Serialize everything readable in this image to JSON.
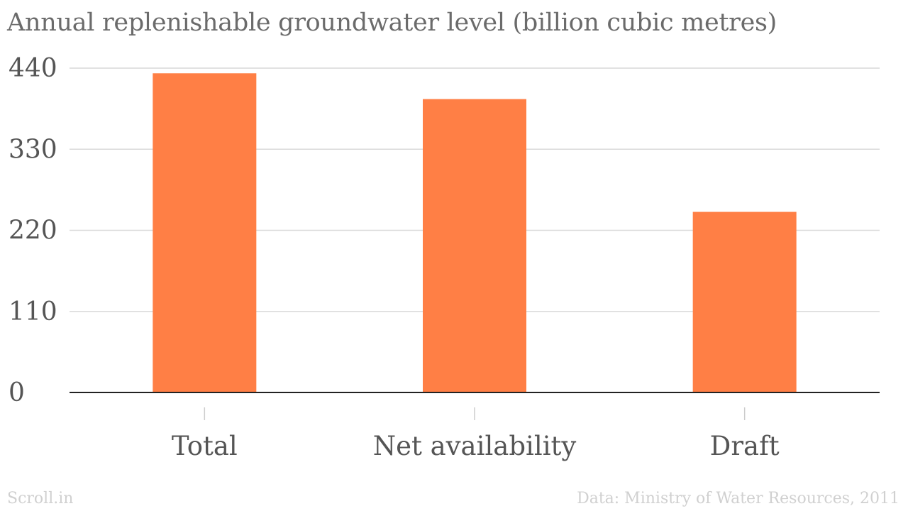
{
  "chart_data": {
    "type": "bar",
    "title": "Annual replenishable groundwater level (billion cubic metres)",
    "categories": [
      "Total",
      "Net availability",
      "Draft"
    ],
    "values": [
      433,
      398,
      245
    ],
    "yticks": [
      0,
      110,
      220,
      330,
      440
    ],
    "ylim": [
      0,
      440
    ],
    "xlabel": "",
    "ylabel": "",
    "grid": true,
    "legend": "none",
    "bar_color": "#ff7f45",
    "tick_color": "#555555",
    "grid_color": "#d9d9d9",
    "axis_color": "#222222"
  },
  "footer": {
    "brand": "Scroll.in",
    "source": "Data: Ministry of Water Resources, 2011"
  }
}
